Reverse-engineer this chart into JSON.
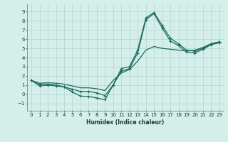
{
  "xlabel": "Humidex (Indice chaleur)",
  "background_color": "#d4eeea",
  "grid_color": "#b8d8d4",
  "line_color": "#1a6b5a",
  "xlim": [
    -0.5,
    23.5
  ],
  "ylim": [
    -1.8,
    9.8
  ],
  "xticks": [
    0,
    1,
    2,
    3,
    4,
    5,
    6,
    7,
    8,
    9,
    10,
    11,
    12,
    13,
    14,
    15,
    16,
    17,
    18,
    19,
    20,
    21,
    22,
    23
  ],
  "yticks": [
    -1,
    0,
    1,
    2,
    3,
    4,
    5,
    6,
    7,
    8,
    9
  ],
  "line1_x": [
    0,
    1,
    2,
    3,
    4,
    5,
    6,
    7,
    8,
    9,
    10,
    11,
    12,
    13,
    14,
    15,
    16,
    17,
    18,
    19,
    20,
    21,
    22,
    23
  ],
  "line1_y": [
    1.5,
    0.9,
    1.0,
    0.9,
    0.8,
    0.55,
    0.3,
    0.3,
    0.15,
    -0.15,
    1.0,
    2.8,
    3.0,
    4.8,
    8.3,
    8.9,
    7.5,
    6.1,
    5.5,
    4.8,
    4.7,
    5.0,
    5.5,
    5.7
  ],
  "line2_x": [
    0,
    1,
    2,
    3,
    4,
    5,
    6,
    7,
    8,
    9,
    10,
    11,
    12,
    13,
    14,
    15,
    16,
    17,
    18,
    19,
    20,
    21,
    22,
    23
  ],
  "line2_y": [
    1.5,
    1.1,
    1.1,
    1.0,
    0.8,
    0.25,
    -0.2,
    -0.25,
    -0.4,
    -0.6,
    1.0,
    2.5,
    2.8,
    4.5,
    8.1,
    8.8,
    7.2,
    5.8,
    5.3,
    4.6,
    4.5,
    4.9,
    5.4,
    5.6
  ],
  "line3_x": [
    0,
    1,
    2,
    3,
    4,
    5,
    6,
    7,
    8,
    9,
    10,
    11,
    12,
    13,
    14,
    15,
    16,
    17,
    18,
    19,
    20,
    21,
    22,
    23
  ],
  "line3_y": [
    1.5,
    1.2,
    1.25,
    1.2,
    1.1,
    0.9,
    0.7,
    0.7,
    0.6,
    0.4,
    1.5,
    2.3,
    2.7,
    3.6,
    4.8,
    5.2,
    5.0,
    4.9,
    4.8,
    4.7,
    4.8,
    5.1,
    5.5,
    5.7
  ]
}
